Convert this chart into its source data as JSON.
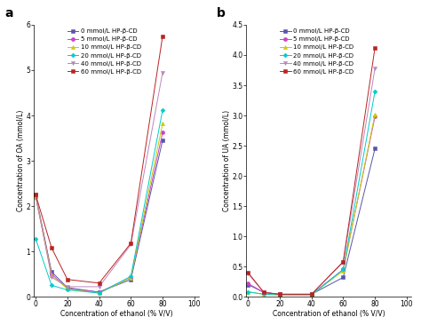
{
  "title_a": "a",
  "title_b": "b",
  "xlabel": "Concentration of ethanol (% V/V)",
  "ylabel_a": "Concentration of OA (mmol/L)",
  "ylabel_b": "Concentration of UA (mmol/L)",
  "x_ticks_a": [
    0,
    20,
    40,
    60,
    80,
    100
  ],
  "x_ticks_b": [
    0,
    20,
    40,
    60,
    80,
    100
  ],
  "xlim_a": [
    -1,
    103
  ],
  "xlim_b": [
    -1,
    103
  ],
  "ylim_a": [
    0,
    6
  ],
  "ylim_b": [
    0,
    4.5
  ],
  "yticks_a": [
    0,
    1,
    2,
    3,
    4,
    5,
    6
  ],
  "yticks_b": [
    0,
    0.5,
    1.0,
    1.5,
    2.0,
    2.5,
    3.0,
    3.5,
    4.0,
    4.5
  ],
  "series": [
    {
      "label": "0 mmol/L HP-β-CD",
      "color": "#5555aa",
      "marker": "s",
      "ms": 3
    },
    {
      "label": "5 mmol/L HP-β-CD",
      "color": "#cc44cc",
      "marker": "o",
      "ms": 3
    },
    {
      "label": "10 mmol/L HP-β-CD",
      "color": "#cccc00",
      "marker": "^",
      "ms": 3
    },
    {
      "label": "20 mmol/L HP-β-CD",
      "color": "#00cccc",
      "marker": "D",
      "ms": 2.5
    },
    {
      "label": "40 mmol/L HP-β-CD",
      "color": "#bb88bb",
      "marker": "v",
      "ms": 3
    },
    {
      "label": "60 mmol/L HP-β-CD",
      "color": "#bb2222",
      "marker": "s",
      "ms": 3
    }
  ],
  "data_a": {
    "x": [
      0,
      10,
      20,
      40,
      60,
      80
    ],
    "y": [
      [
        2.25,
        0.55,
        0.2,
        0.1,
        0.38,
        3.45
      ],
      [
        2.2,
        0.5,
        0.18,
        0.1,
        0.42,
        3.62
      ],
      [
        2.22,
        0.48,
        0.17,
        0.08,
        0.42,
        3.82
      ],
      [
        1.28,
        0.25,
        0.15,
        0.08,
        0.45,
        4.12
      ],
      [
        2.23,
        0.43,
        0.22,
        0.22,
        1.15,
        4.95
      ],
      [
        2.25,
        1.08,
        0.38,
        0.3,
        1.18,
        5.75
      ]
    ]
  },
  "data_b": {
    "x": [
      0,
      10,
      20,
      40,
      60,
      80
    ],
    "y": [
      [
        0.2,
        0.07,
        0.04,
        0.04,
        0.32,
        2.45
      ],
      [
        0.22,
        0.07,
        0.04,
        0.04,
        0.45,
        2.98
      ],
      [
        0.08,
        0.04,
        0.03,
        0.03,
        0.43,
        3.02
      ],
      [
        0.08,
        0.04,
        0.03,
        0.03,
        0.45,
        3.4
      ],
      [
        0.38,
        0.07,
        0.04,
        0.04,
        0.57,
        3.78
      ],
      [
        0.4,
        0.07,
        0.04,
        0.04,
        0.58,
        4.12
      ]
    ]
  },
  "background_color": "#ffffff",
  "fontsize_label": 5.5,
  "fontsize_tick": 5.5,
  "fontsize_legend": 5.0,
  "fontsize_title": 10,
  "linewidth": 0.7,
  "markersize": 2.8
}
